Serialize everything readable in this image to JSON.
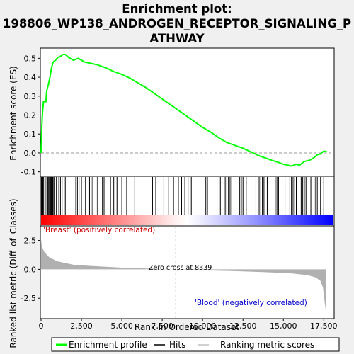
{
  "title_lines": [
    "Enrichment plot:",
    "198806_WP138_ANDROGEN_RECEPTOR_SIGNALING_P",
    "ATHWAY"
  ],
  "colors": {
    "es_line": "#00ff00",
    "hits": "#000000",
    "pos_label": "#cc0000",
    "neg_label": "#0000cc",
    "metric_fill": "#b0b0b0",
    "zero_line": "#999999"
  },
  "chart_data": [
    {
      "type": "line",
      "name": "enrichment-score",
      "ylabel": "Enrichment score (ES)",
      "ylim": [
        -0.12,
        0.55
      ],
      "yticks": [
        -0.1,
        0.0,
        0.1,
        0.2,
        0.3,
        0.4,
        0.5
      ],
      "ytick_labels": [
        "-0.1",
        "0.0",
        "0.1",
        "0.2",
        "0.3",
        "0.4",
        "0.5"
      ],
      "xlim": [
        0,
        18100
      ],
      "grid": false,
      "x": [
        0,
        30,
        80,
        150,
        300,
        350,
        450,
        550,
        650,
        750,
        900,
        1050,
        1200,
        1350,
        1500,
        1700,
        2000,
        2300,
        2700,
        3000,
        3500,
        4000,
        4500,
        5000,
        5500,
        6000,
        6500,
        7000,
        7500,
        8000,
        8500,
        9000,
        9500,
        10000,
        10500,
        11000,
        11500,
        12000,
        12500,
        13000,
        13500,
        14000,
        14300,
        14700,
        15000,
        15300,
        15500,
        15800,
        16000,
        16300,
        16600,
        16900,
        17100,
        17300,
        17500,
        17700
      ],
      "y": [
        0.0,
        0.1,
        0.2,
        0.27,
        0.27,
        0.33,
        0.36,
        0.4,
        0.45,
        0.48,
        0.49,
        0.505,
        0.51,
        0.52,
        0.52,
        0.505,
        0.49,
        0.5,
        0.48,
        0.475,
        0.465,
        0.45,
        0.43,
        0.415,
        0.395,
        0.37,
        0.345,
        0.315,
        0.285,
        0.255,
        0.225,
        0.195,
        0.165,
        0.135,
        0.11,
        0.08,
        0.055,
        0.04,
        0.025,
        0.005,
        -0.015,
        -0.03,
        -0.04,
        -0.05,
        -0.06,
        -0.065,
        -0.07,
        -0.06,
        -0.065,
        -0.045,
        -0.04,
        -0.025,
        -0.01,
        -0.005,
        0.01,
        0.005
      ]
    },
    {
      "type": "scatter",
      "name": "hits",
      "x": [
        20,
        60,
        110,
        160,
        260,
        360,
        420,
        470,
        520,
        580,
        620,
        660,
        700,
        740,
        800,
        850,
        950,
        1100,
        1200,
        1300,
        1500,
        2150,
        2250,
        2350,
        2500,
        2750,
        3000,
        3100,
        3200,
        3400,
        3500,
        3800,
        3900,
        4300,
        4500,
        4700,
        5000,
        5300,
        5800,
        6900,
        7100,
        7600,
        7900,
        8200,
        8500,
        8700,
        8900,
        9100,
        9300,
        9400,
        10200,
        10300,
        11100,
        11400,
        11500,
        11600,
        11700,
        11800,
        12300,
        12400,
        12500,
        12700,
        13300,
        13500,
        13600,
        13700,
        13800,
        14000,
        14500,
        14600,
        14700,
        15100,
        15400,
        15500,
        15600,
        15700,
        15800,
        16100,
        16200,
        16300,
        16400,
        16700,
        16900,
        17000,
        17100,
        17300,
        17500
      ]
    },
    {
      "type": "area",
      "name": "ranked-list-metric",
      "ylabel": "Ranked list metric (Diff_of_Classes)",
      "xlabel": "Rank in Ordered Dataset",
      "ylim": [
        -4.2,
        3.7
      ],
      "yticks": [
        -2.5,
        0.0,
        2.5
      ],
      "ytick_labels": [
        "-2.5",
        "0.0",
        "2.5"
      ],
      "xlim": [
        0,
        18100
      ],
      "xticks": [
        0,
        2500,
        5000,
        7500,
        10000,
        12500,
        15000,
        17500
      ],
      "xtick_labels": [
        "0",
        "2,500",
        "5,000",
        "7,500",
        "10,000",
        "12,500",
        "15,000",
        "17,500"
      ],
      "x": [
        0,
        50,
        200,
        500,
        1000,
        2000,
        3000,
        5000,
        7000,
        8339,
        10000,
        12000,
        14000,
        15500,
        16500,
        17000,
        17300,
        17450,
        17550,
        17650
      ],
      "y": [
        2.6,
        2.0,
        1.5,
        1.05,
        0.7,
        0.4,
        0.3,
        0.15,
        0.05,
        0.0,
        -0.08,
        -0.15,
        -0.25,
        -0.35,
        -0.5,
        -0.7,
        -1.0,
        -1.6,
        -2.8,
        -3.8
      ]
    }
  ],
  "labels": {
    "pos_class": "'Breast' (positively correlated)",
    "neg_class": "'Blood' (negatively correlated)",
    "zero_cross": "Zero cross at 8339"
  },
  "legend": {
    "items": [
      {
        "label": "Enrichment profile",
        "kind": "line",
        "color": "#00ff00"
      },
      {
        "label": "Hits",
        "kind": "line",
        "color": "#000000"
      },
      {
        "label": "Ranking metric scores",
        "kind": "line",
        "color": "#c0c0c0"
      }
    ]
  }
}
